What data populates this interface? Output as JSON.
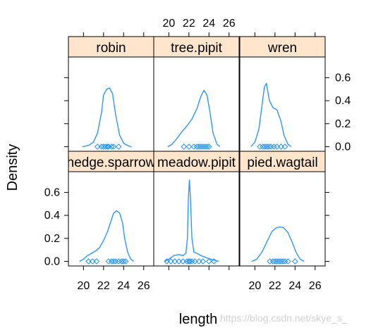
{
  "chart_data": {
    "type": "line",
    "subtype": "lattice-densityplot",
    "xlabel": "length",
    "ylabel": "Density",
    "xlim": [
      18.5,
      27.0
    ],
    "ylim": [
      -0.04,
      0.78
    ],
    "xticks": [
      20,
      22,
      24,
      26
    ],
    "yticks": [
      0.0,
      0.2,
      0.4,
      0.6
    ],
    "colors": {
      "curve": "#1e90ff",
      "points": "#1e90ff",
      "strip": "#ffe5cc",
      "frame": "#000000"
    },
    "watermark": "https://blog.csdn.net/skye_s_",
    "panels": [
      {
        "name": "robin",
        "density": [
          [
            19.9,
            0.0
          ],
          [
            20.5,
            0.01
          ],
          [
            21.0,
            0.04
          ],
          [
            21.4,
            0.12
          ],
          [
            21.8,
            0.3
          ],
          [
            22.0,
            0.45
          ],
          [
            22.3,
            0.5
          ],
          [
            22.6,
            0.51
          ],
          [
            22.9,
            0.46
          ],
          [
            23.2,
            0.28
          ],
          [
            23.6,
            0.1
          ],
          [
            24.0,
            0.03
          ],
          [
            24.5,
            0.005
          ],
          [
            24.8,
            0.0
          ]
        ],
        "points": [
          21.4,
          21.8,
          22.0,
          22.2,
          22.4,
          22.5,
          22.8,
          23.0,
          23.5
        ]
      },
      {
        "name": "tree.pipit",
        "density": [
          [
            19.9,
            0.0
          ],
          [
            20.3,
            0.02
          ],
          [
            20.8,
            0.07
          ],
          [
            21.3,
            0.13
          ],
          [
            21.8,
            0.18
          ],
          [
            22.3,
            0.24
          ],
          [
            22.8,
            0.33
          ],
          [
            23.2,
            0.44
          ],
          [
            23.5,
            0.49
          ],
          [
            23.8,
            0.45
          ],
          [
            24.1,
            0.3
          ],
          [
            24.4,
            0.12
          ],
          [
            24.8,
            0.02
          ],
          [
            25.1,
            0.0
          ]
        ],
        "points": [
          21.5,
          22.0,
          22.5,
          22.8,
          23.0,
          23.2,
          23.4,
          23.6,
          23.8,
          24.0
        ]
      },
      {
        "name": "wren",
        "density": [
          [
            19.6,
            0.0
          ],
          [
            20.0,
            0.04
          ],
          [
            20.4,
            0.15
          ],
          [
            20.7,
            0.35
          ],
          [
            20.95,
            0.52
          ],
          [
            21.15,
            0.55
          ],
          [
            21.45,
            0.4
          ],
          [
            21.8,
            0.34
          ],
          [
            22.2,
            0.32
          ],
          [
            22.6,
            0.22
          ],
          [
            22.9,
            0.1
          ],
          [
            23.3,
            0.02
          ],
          [
            23.6,
            0.0
          ]
        ],
        "points": [
          20.5,
          20.8,
          21.0,
          21.2,
          21.4,
          21.6,
          21.9,
          22.2,
          22.6,
          23.0
        ]
      },
      {
        "name": "hedge.sparrow",
        "density": [
          [
            19.6,
            0.0
          ],
          [
            20.0,
            0.02
          ],
          [
            20.4,
            0.05
          ],
          [
            20.8,
            0.07
          ],
          [
            21.2,
            0.09
          ],
          [
            21.6,
            0.12
          ],
          [
            22.0,
            0.18
          ],
          [
            22.4,
            0.26
          ],
          [
            22.7,
            0.34
          ],
          [
            23.0,
            0.42
          ],
          [
            23.3,
            0.44
          ],
          [
            23.6,
            0.42
          ],
          [
            23.9,
            0.33
          ],
          [
            24.1,
            0.2
          ],
          [
            24.4,
            0.08
          ],
          [
            24.7,
            0.02
          ],
          [
            25.0,
            0.0
          ]
        ],
        "points": [
          20.5,
          20.9,
          21.3,
          22.5,
          22.8,
          23.0,
          23.2,
          23.5,
          23.8,
          24.0,
          24.2
        ]
      },
      {
        "name": "meadow.pipit",
        "density": [
          [
            19.6,
            0.0
          ],
          [
            20.0,
            0.02
          ],
          [
            20.5,
            0.05
          ],
          [
            21.0,
            0.06
          ],
          [
            21.4,
            0.05
          ],
          [
            21.7,
            0.07
          ],
          [
            21.85,
            0.2
          ],
          [
            21.95,
            0.55
          ],
          [
            22.05,
            0.71
          ],
          [
            22.15,
            0.55
          ],
          [
            22.3,
            0.2
          ],
          [
            22.5,
            0.08
          ],
          [
            22.8,
            0.07
          ],
          [
            23.2,
            0.05
          ],
          [
            23.8,
            0.03
          ],
          [
            24.5,
            0.01
          ],
          [
            25.0,
            0.0
          ]
        ],
        "points": [
          19.8,
          20.2,
          20.6,
          21.0,
          21.4,
          21.8,
          22.0,
          22.1,
          22.3,
          22.6,
          23.0,
          23.4,
          24.0,
          24.5
        ]
      },
      {
        "name": "pied.wagtail",
        "density": [
          [
            19.7,
            0.0
          ],
          [
            20.2,
            0.02
          ],
          [
            20.7,
            0.08
          ],
          [
            21.2,
            0.17
          ],
          [
            21.7,
            0.26
          ],
          [
            22.1,
            0.29
          ],
          [
            22.5,
            0.3
          ],
          [
            22.9,
            0.29
          ],
          [
            23.3,
            0.25
          ],
          [
            23.7,
            0.17
          ],
          [
            24.1,
            0.08
          ],
          [
            24.5,
            0.02
          ],
          [
            24.9,
            0.0
          ]
        ],
        "points": [
          21.5,
          21.8,
          22.0,
          22.2,
          22.4,
          22.6,
          22.8,
          23.0,
          23.3,
          24.0
        ]
      }
    ]
  }
}
